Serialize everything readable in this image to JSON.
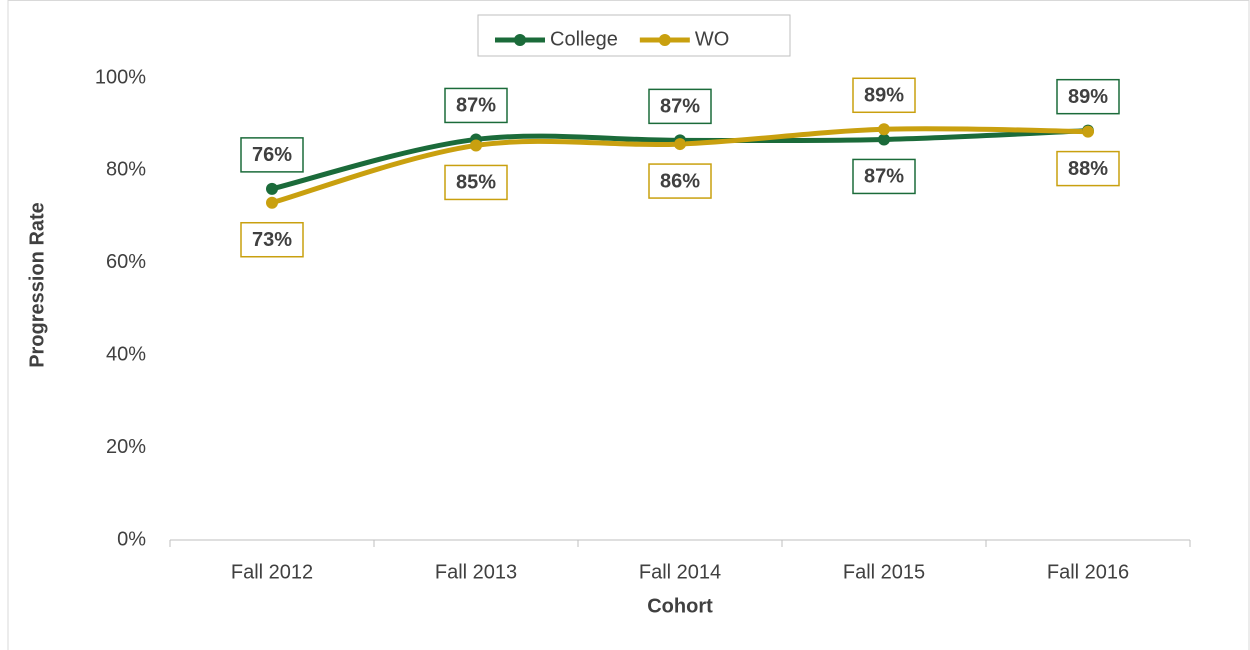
{
  "chart_data": {
    "type": "line",
    "categories": [
      "Fall 2012",
      "Fall 2013",
      "Fall 2014",
      "Fall 2015",
      "Fall 2016"
    ],
    "series": [
      {
        "name": "College",
        "color": "#1b6b3a",
        "values": [
          76,
          86.7,
          86.5,
          86.7,
          88.6
        ],
        "value_labels": [
          "76%",
          "87%",
          "87%",
          "87%",
          "89%"
        ]
      },
      {
        "name": "WO",
        "color": "#c9a00f",
        "values": [
          73,
          85.4,
          85.7,
          88.9,
          88.4
        ],
        "value_labels": [
          "73%",
          "85%",
          "86%",
          "89%",
          "88%"
        ]
      }
    ],
    "ylim": [
      0,
      100
    ],
    "yticks": [
      {
        "value": 0,
        "label": "0%"
      },
      {
        "value": 20,
        "label": "20%"
      },
      {
        "value": 40,
        "label": "40%"
      },
      {
        "value": 60,
        "label": "60%"
      },
      {
        "value": 80,
        "label": "80%"
      },
      {
        "value": 100,
        "label": "100%"
      }
    ],
    "xlabel": "Cohort",
    "ylabel": "Progression Rate",
    "smooth": true,
    "grid": false,
    "legend": "top"
  }
}
